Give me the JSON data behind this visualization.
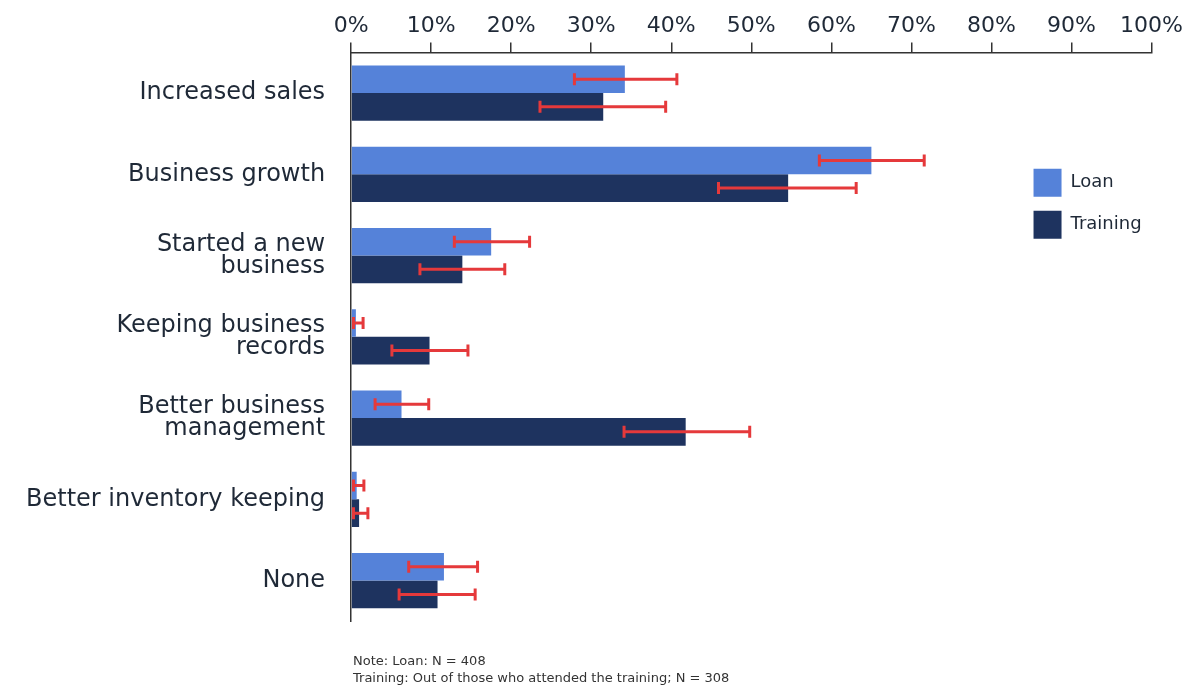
{
  "chart_data": {
    "type": "bar",
    "orientation": "horizontal",
    "categories": [
      "Increased sales",
      "Business growth",
      "Started a new\nbusiness",
      "Keeping business\nrecords",
      "Better business\nmanagement",
      "Better inventory keeping",
      "None"
    ],
    "series": [
      {
        "name": "Loan",
        "color": "#5582d9",
        "values": [
          34.2,
          65.0,
          17.5,
          0.6,
          6.3,
          0.7,
          11.6
        ],
        "errors": [
          [
            27.9,
            40.7
          ],
          [
            58.5,
            71.6
          ],
          [
            12.9,
            22.3
          ],
          [
            0.3,
            1.5
          ],
          [
            3.0,
            9.7
          ],
          [
            0.3,
            1.6
          ],
          [
            7.2,
            15.8
          ]
        ]
      },
      {
        "name": "Training",
        "color": "#1e335f",
        "values": [
          31.5,
          54.6,
          13.9,
          9.8,
          41.8,
          1.0,
          10.8
        ],
        "errors": [
          [
            23.6,
            39.3
          ],
          [
            45.9,
            63.1
          ],
          [
            8.6,
            19.2
          ],
          [
            5.1,
            14.6
          ],
          [
            34.1,
            49.8
          ],
          [
            0.3,
            2.1
          ],
          [
            6.0,
            15.5
          ]
        ]
      }
    ],
    "xlim": [
      0,
      100
    ],
    "xticks": [
      {
        "value": 0,
        "label": "0%"
      },
      {
        "value": 10,
        "label": "10%"
      },
      {
        "value": 20,
        "label": "20%"
      },
      {
        "value": 30,
        "label": "30%"
      },
      {
        "value": 40,
        "label": "40%"
      },
      {
        "value": 50,
        "label": "50%"
      },
      {
        "value": 60,
        "label": "60%"
      },
      {
        "value": 70,
        "label": "70%"
      },
      {
        "value": 80,
        "label": "80%"
      },
      {
        "value": 90,
        "label": "90%"
      },
      {
        "value": 100,
        "label": "100%"
      }
    ],
    "grid": false,
    "legend": "right",
    "annotations": [
      "Note: Loan: N = 408",
      "Training: Out of those who attended the training; N = 308"
    ]
  }
}
